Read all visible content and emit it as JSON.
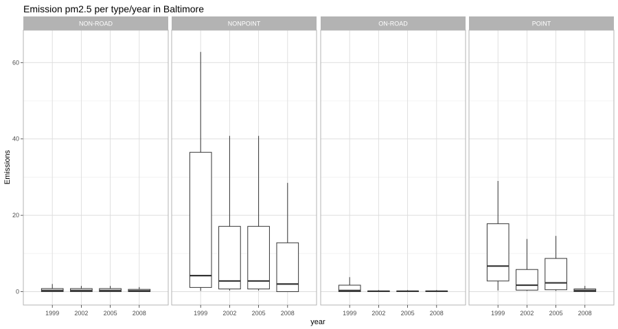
{
  "chart_data": {
    "type": "boxplot",
    "title": "Emission pm2.5 per type/year in Baltimore",
    "xlabel": "year",
    "ylabel": "Emissions",
    "ylim": [
      -3.5,
      68.5
    ],
    "y_ticks": [
      0,
      20,
      40,
      60
    ],
    "grid": true,
    "categories": [
      "1999",
      "2002",
      "2005",
      "2008"
    ],
    "facets": [
      {
        "name": "NON-ROAD",
        "boxes": [
          {
            "x": "1999",
            "min": 0.0,
            "q1": 0.0,
            "median": 0.3,
            "q3": 0.8,
            "max": 2.0
          },
          {
            "x": "2002",
            "min": 0.0,
            "q1": 0.0,
            "median": 0.3,
            "q3": 0.8,
            "max": 1.5
          },
          {
            "x": "2005",
            "min": 0.0,
            "q1": 0.0,
            "median": 0.3,
            "q3": 0.8,
            "max": 1.5
          },
          {
            "x": "2008",
            "min": 0.0,
            "q1": 0.0,
            "median": 0.2,
            "q3": 0.6,
            "max": 1.2
          }
        ]
      },
      {
        "name": "NONPOINT",
        "boxes": [
          {
            "x": "1999",
            "min": 0.2,
            "q1": 1.1,
            "median": 4.2,
            "q3": 36.5,
            "max": 62.8
          },
          {
            "x": "2002",
            "min": 0.3,
            "q1": 0.7,
            "median": 2.8,
            "q3": 17.1,
            "max": 40.8
          },
          {
            "x": "2005",
            "min": 0.3,
            "q1": 0.7,
            "median": 2.8,
            "q3": 17.1,
            "max": 40.8
          },
          {
            "x": "2008",
            "min": 0.0,
            "q1": 0.0,
            "median": 2.0,
            "q3": 12.8,
            "max": 28.5
          }
        ]
      },
      {
        "name": "ON-ROAD",
        "boxes": [
          {
            "x": "1999",
            "min": 0.0,
            "q1": 0.0,
            "median": 0.3,
            "q3": 1.7,
            "max": 3.8
          },
          {
            "x": "2002",
            "min": 0.0,
            "q1": 0.0,
            "median": 0.1,
            "q3": 0.2,
            "max": 0.4
          },
          {
            "x": "2005",
            "min": 0.0,
            "q1": 0.0,
            "median": 0.1,
            "q3": 0.2,
            "max": 0.4
          },
          {
            "x": "2008",
            "min": 0.0,
            "q1": 0.0,
            "median": 0.1,
            "q3": 0.2,
            "max": 0.4
          }
        ]
      },
      {
        "name": "POINT",
        "boxes": [
          {
            "x": "1999",
            "min": 0.3,
            "q1": 2.8,
            "median": 6.7,
            "q3": 17.8,
            "max": 29.0
          },
          {
            "x": "2002",
            "min": 0.2,
            "q1": 0.4,
            "median": 1.7,
            "q3": 5.8,
            "max": 13.8
          },
          {
            "x": "2005",
            "min": 0.2,
            "q1": 0.5,
            "median": 2.3,
            "q3": 8.7,
            "max": 14.6
          },
          {
            "x": "2008",
            "min": 0.0,
            "q1": 0.0,
            "median": 0.3,
            "q3": 0.7,
            "max": 1.5
          }
        ]
      }
    ]
  }
}
